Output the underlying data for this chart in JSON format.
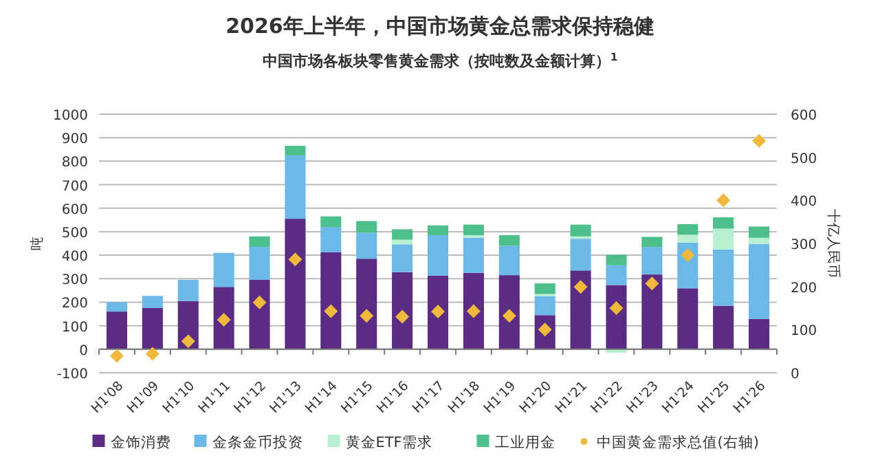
{
  "chart_data": {
    "type": "bar",
    "stacked": true,
    "title": "2026年上半年，中国市场黄金总需求保持稳健",
    "subtitle": "中国市场各板块零售黄金需求（按吨数及金额计算）$^{1}$",
    "ylabel": "吨",
    "y2label": "十亿人民币",
    "categories": [
      "H1'08",
      "H1'09",
      "H1'10",
      "H1'11",
      "H1'12",
      "H1'13",
      "H1'14",
      "H1'15",
      "H1'16",
      "H1'17",
      "H1'18",
      "H1'19",
      "H1'20",
      "H1'21",
      "H1'22",
      "H1'23",
      "H1'24",
      "H1'25",
      "H1'26"
    ],
    "series": [
      {
        "name": "金饰消费",
        "color": "#5b2c83",
        "values": [
          160,
          175,
          205,
          265,
          295,
          555,
          412,
          385,
          328,
          313,
          325,
          315,
          145,
          335,
          273,
          318,
          259,
          185,
          129
        ]
      },
      {
        "name": "金条金币投资",
        "color": "#6cb8e8",
        "values": [
          40,
          52,
          90,
          145,
          140,
          270,
          108,
          110,
          118,
          172,
          150,
          125,
          80,
          135,
          84,
          117,
          195,
          240,
          319
        ]
      },
      {
        "name": "黄金ETF需求",
        "color": "#b8f0d2",
        "values": [
          null,
          null,
          null,
          null,
          null,
          null,
          null,
          null,
          20,
          null,
          10,
          null,
          10,
          10,
          -15,
          null,
          33,
          88,
          26
        ]
      },
      {
        "name": "工业用金",
        "color": "#4cbf8a",
        "values": [
          null,
          null,
          null,
          null,
          45,
          40,
          45,
          50,
          44,
          42,
          45,
          45,
          45,
          50,
          45,
          43,
          45,
          48,
          48
        ]
      },
      {
        "name": "中国黄金需求总值(右轴)",
        "type": "scatter",
        "axis": "y2",
        "marker": "diamond",
        "color": "#f0b83c",
        "values": [
          39,
          44,
          73,
          123,
          163,
          263,
          143,
          132,
          130,
          142,
          143,
          132,
          100,
          199,
          150,
          207,
          273,
          400,
          538
        ]
      }
    ],
    "ylim": [
      -100,
      1000
    ],
    "yticks": [
      -100,
      0,
      100,
      200,
      300,
      400,
      500,
      600,
      700,
      800,
      900,
      1000
    ],
    "y2lim": [
      0,
      600
    ],
    "y2ticks": [
      0,
      100,
      200,
      300,
      400,
      500,
      600
    ],
    "grid": "y",
    "legend": "bottom"
  }
}
